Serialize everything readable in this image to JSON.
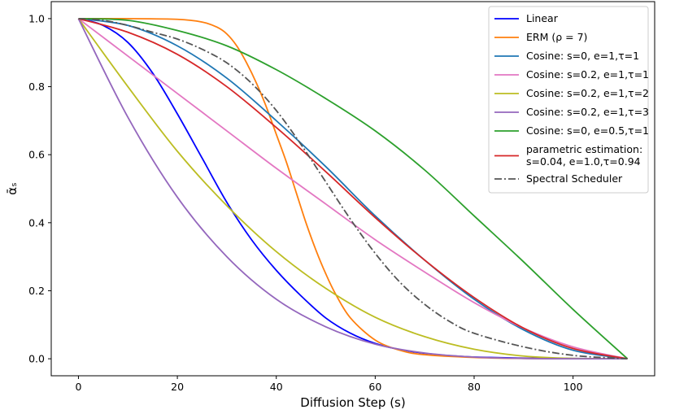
{
  "chart_data": {
    "type": "line",
    "xlabel": "Diffusion Step (s)",
    "ylabel": "ᾱₛ",
    "xlim": [
      -5.5,
      116.5
    ],
    "ylim": [
      -0.05,
      1.05
    ],
    "xticks": [
      0,
      20,
      40,
      60,
      80,
      100
    ],
    "xtick_labels": [
      "0",
      "20",
      "40",
      "60",
      "80",
      "100"
    ],
    "yticks": [
      0.0,
      0.2,
      0.4,
      0.6,
      0.8,
      1.0
    ],
    "ytick_labels": [
      "0.0",
      "0.2",
      "0.4",
      "0.6",
      "0.8",
      "1.0"
    ],
    "grid": false,
    "legend_position": "top-right",
    "series": [
      {
        "name": "Linear",
        "color": "#0000ff",
        "dash": "solid",
        "x": [
          0,
          5,
          10,
          15,
          20,
          25,
          30,
          35,
          40,
          45,
          50,
          55,
          60,
          65,
          70,
          75,
          80,
          90,
          100,
          111
        ],
        "y": [
          1.0,
          0.98,
          0.93,
          0.84,
          0.72,
          0.59,
          0.46,
          0.35,
          0.26,
          0.185,
          0.12,
          0.075,
          0.045,
          0.027,
          0.016,
          0.009,
          0.005,
          0.002,
          0.0007,
          0.0
        ]
      },
      {
        "name": "ERM (ρ = 7)",
        "color": "#ff7f0e",
        "dash": "solid",
        "x": [
          0,
          10,
          20,
          25,
          28,
          30,
          32,
          34,
          36,
          38,
          40,
          42,
          44,
          46,
          48,
          50,
          52,
          55,
          60,
          65,
          70,
          80,
          90,
          111
        ],
        "y": [
          1.0,
          1.0,
          0.998,
          0.99,
          0.975,
          0.955,
          0.92,
          0.87,
          0.81,
          0.74,
          0.66,
          0.58,
          0.49,
          0.4,
          0.32,
          0.25,
          0.19,
          0.12,
          0.055,
          0.025,
          0.012,
          0.004,
          0.001,
          0.0
        ]
      },
      {
        "name": "Cosine: s=0, e=1,τ=1",
        "color": "#1f77b4",
        "dash": "solid",
        "x": [
          0,
          10,
          20,
          30,
          40,
          50,
          60,
          70,
          80,
          90,
          100,
          111
        ],
        "y": [
          1.0,
          0.98,
          0.92,
          0.825,
          0.7,
          0.565,
          0.42,
          0.29,
          0.175,
          0.085,
          0.025,
          0.0
        ]
      },
      {
        "name": "Cosine: s=0.2, e=1,τ=1",
        "color": "#e377c2",
        "dash": "solid",
        "x": [
          0,
          10,
          20,
          30,
          40,
          50,
          60,
          70,
          80,
          90,
          100,
          111
        ],
        "y": [
          1.0,
          0.89,
          0.78,
          0.67,
          0.56,
          0.455,
          0.35,
          0.255,
          0.165,
          0.09,
          0.035,
          0.0
        ]
      },
      {
        "name": "Cosine: s=0.2, e=1,τ=2",
        "color": "#bcbd22",
        "dash": "solid",
        "x": [
          0,
          10,
          20,
          30,
          40,
          50,
          60,
          70,
          80,
          90,
          100,
          111
        ],
        "y": [
          1.0,
          0.8,
          0.61,
          0.45,
          0.315,
          0.207,
          0.122,
          0.065,
          0.028,
          0.008,
          0.001,
          0.0
        ]
      },
      {
        "name": "Cosine: s=0.2, e=1,τ=3",
        "color": "#9467bd",
        "dash": "solid",
        "x": [
          0,
          10,
          20,
          30,
          40,
          50,
          60,
          70,
          80,
          90,
          100,
          111
        ],
        "y": [
          1.0,
          0.71,
          0.475,
          0.3,
          0.175,
          0.094,
          0.043,
          0.017,
          0.005,
          0.001,
          0.0,
          0.0
        ]
      },
      {
        "name": "Cosine: s=0, e=0.5,τ=1",
        "color": "#2ca02c",
        "dash": "solid",
        "x": [
          0,
          10,
          20,
          30,
          40,
          50,
          60,
          70,
          80,
          90,
          100,
          111
        ],
        "y": [
          1.0,
          0.995,
          0.965,
          0.92,
          0.85,
          0.765,
          0.67,
          0.555,
          0.42,
          0.285,
          0.145,
          0.0
        ]
      },
      {
        "name": "parametric estimation:\n s=0.04, e=1.0,τ=0.94",
        "color": "#d62728",
        "dash": "solid",
        "x": [
          0,
          10,
          20,
          30,
          40,
          50,
          60,
          70,
          80,
          90,
          100,
          111
        ],
        "y": [
          1.0,
          0.96,
          0.895,
          0.8,
          0.68,
          0.55,
          0.415,
          0.29,
          0.18,
          0.09,
          0.03,
          0.0
        ]
      },
      {
        "name": "Spectral Scheduler",
        "color": "#555555",
        "dash": "dashdot",
        "x": [
          0,
          5,
          10,
          15,
          20,
          25,
          30,
          35,
          40,
          45,
          50,
          55,
          60,
          65,
          70,
          75,
          80,
          90,
          100,
          111
        ],
        "y": [
          1.0,
          0.995,
          0.98,
          0.96,
          0.94,
          0.91,
          0.87,
          0.81,
          0.73,
          0.63,
          0.52,
          0.41,
          0.31,
          0.225,
          0.16,
          0.11,
          0.075,
          0.035,
          0.01,
          0.0
        ]
      }
    ]
  }
}
